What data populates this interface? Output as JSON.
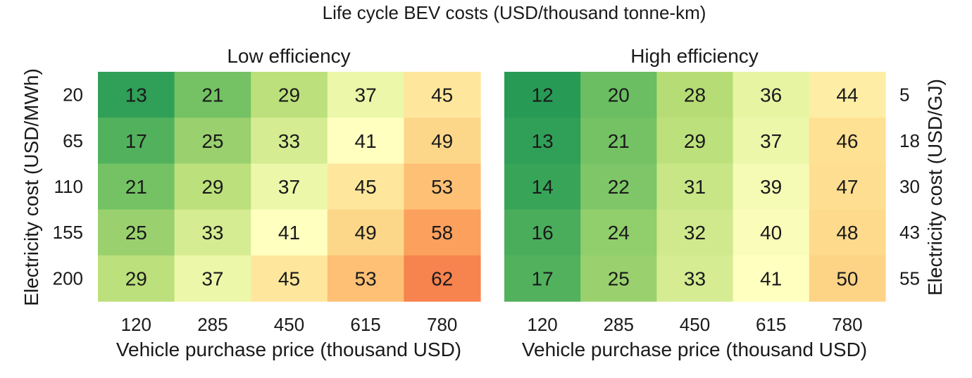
{
  "title": "Life cycle BEV costs (USD/thousand tonne-km)",
  "colormap": {
    "stops": [
      {
        "v": 12,
        "color": "#279b55"
      },
      {
        "v": 20,
        "color": "#6bbe62"
      },
      {
        "v": 28,
        "color": "#b6dd75"
      },
      {
        "v": 36,
        "color": "#e7f5a3"
      },
      {
        "v": 41,
        "color": "#ffffc0"
      },
      {
        "v": 46,
        "color": "#fee193"
      },
      {
        "v": 50,
        "color": "#fdd386"
      },
      {
        "v": 54,
        "color": "#fdba6f"
      },
      {
        "v": 58,
        "color": "#fca05e"
      },
      {
        "v": 62,
        "color": "#f7834f"
      }
    ]
  },
  "chart_data": [
    {
      "type": "heatmap",
      "title": "Low efficiency",
      "xlabel": "Vehicle purchase price (thousand USD)",
      "ylabel": "Electricity cost (USD/MWh)",
      "x_categories": [
        "120",
        "285",
        "450",
        "615",
        "780"
      ],
      "y_categories": [
        "20",
        "65",
        "110",
        "155",
        "200"
      ],
      "values": [
        [
          13,
          21,
          29,
          37,
          45
        ],
        [
          17,
          25,
          33,
          41,
          49
        ],
        [
          21,
          29,
          37,
          45,
          53
        ],
        [
          25,
          33,
          41,
          49,
          58
        ],
        [
          29,
          37,
          45,
          53,
          62
        ]
      ]
    },
    {
      "type": "heatmap",
      "title": "High efficiency",
      "xlabel": "Vehicle purchase price (thousand USD)",
      "ylabel": "Electricity cost (USD/GJ)",
      "x_categories": [
        "120",
        "285",
        "450",
        "615",
        "780"
      ],
      "y_categories": [
        "5",
        "18",
        "30",
        "43",
        "55"
      ],
      "values": [
        [
          12,
          20,
          28,
          36,
          44
        ],
        [
          13,
          21,
          29,
          37,
          46
        ],
        [
          14,
          22,
          31,
          39,
          47
        ],
        [
          16,
          24,
          32,
          40,
          48
        ],
        [
          17,
          25,
          33,
          41,
          50
        ]
      ]
    }
  ]
}
